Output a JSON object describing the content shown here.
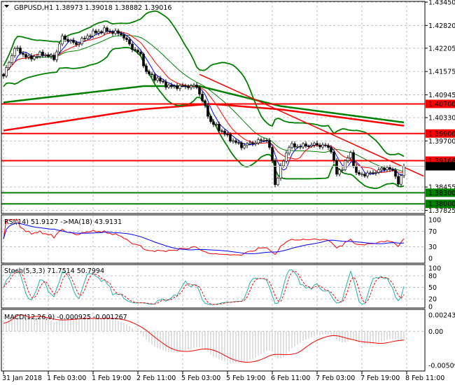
{
  "header": {
    "symbol": "GBPUSD,H1",
    "open": "1.38973",
    "high": "1.39018",
    "low": "1.38882",
    "close": "1.39016"
  },
  "chart_data": {
    "type": "candlestick",
    "price_axis": {
      "ticks": [
        "1.43450",
        "1.42820",
        "1.42205",
        "1.41575",
        "1.40945",
        "1.40330",
        "1.39700",
        "1.38455",
        "1.37825"
      ],
      "range": [
        1.37825,
        1.4345
      ]
    },
    "time_axis": {
      "ticks": [
        "31 Jan 2018",
        "1 Feb 03:00",
        "1 Feb 19:00",
        "2 Feb 11:00",
        "5 Feb 03:00",
        "5 Feb 19:00",
        "6 Feb 11:00",
        "7 Feb 03:00",
        "7 Feb 19:00",
        "8 Feb 11:00"
      ]
    },
    "close_path": [
      [
        0,
        1.4145
      ],
      [
        4,
        1.4221
      ],
      [
        9,
        1.4193
      ],
      [
        14,
        1.4206
      ],
      [
        18,
        1.4193
      ],
      [
        21,
        1.425
      ],
      [
        26,
        1.4231
      ],
      [
        31,
        1.4259
      ],
      [
        36,
        1.4269
      ],
      [
        42,
        1.4259
      ],
      [
        46,
        1.4221
      ],
      [
        49,
        1.4202
      ],
      [
        51,
        1.4155
      ],
      [
        55,
        1.4136
      ],
      [
        59,
        1.4117
      ],
      [
        64,
        1.4117
      ],
      [
        69,
        1.4117
      ],
      [
        71,
        1.4079
      ],
      [
        74,
        1.4022
      ],
      [
        77,
        1.4003
      ],
      [
        81,
        1.3975
      ],
      [
        85,
        1.3956
      ],
      [
        89,
        1.3965
      ],
      [
        94,
        1.3975
      ],
      [
        96,
        1.3918
      ],
      [
        97,
        1.3852
      ],
      [
        100,
        1.3918
      ],
      [
        102,
        1.3956
      ],
      [
        106,
        1.3956
      ],
      [
        111,
        1.396
      ],
      [
        115,
        1.3956
      ],
      [
        117,
        1.3946
      ],
      [
        119,
        1.388
      ],
      [
        121,
        1.3899
      ],
      [
        124,
        1.3937
      ],
      [
        126,
        1.388
      ],
      [
        130,
        1.388
      ],
      [
        134,
        1.389
      ],
      [
        137,
        1.3899
      ],
      [
        140,
        1.388
      ],
      [
        141,
        1.3852
      ],
      [
        143,
        1.39016
      ]
    ],
    "ma_green": [
      [
        0,
        1.4074
      ],
      [
        50,
        1.4118
      ],
      [
        70,
        1.4118
      ],
      [
        99,
        1.4064
      ],
      [
        143,
        1.402
      ]
    ],
    "ma_red": [
      [
        0,
        1.3998
      ],
      [
        49,
        1.4055
      ],
      [
        74,
        1.407
      ],
      [
        99,
        1.4055
      ],
      [
        143,
        1.4011
      ]
    ],
    "trendline": [
      [
        70,
        1.415
      ],
      [
        150,
        1.3875
      ]
    ],
    "levels": [
      {
        "price": "1.40700",
        "color": "#ff0000"
      },
      {
        "price": "1.39900",
        "color": "#ff0000"
      },
      {
        "price": "1.39168",
        "color": "#ff0000"
      },
      {
        "price": "1.38300",
        "color": "#008000"
      },
      {
        "price": "1.38000",
        "color": "#008000"
      }
    ],
    "current_price": "1.39016",
    "rsi": {
      "label": "RSI(14) 51.9127  ->MA(18) 43.9131",
      "ticks": [
        "100",
        "70",
        "30",
        "0"
      ]
    },
    "stoch": {
      "label": "Stoch(5,3,3) 71.7514 50.7994",
      "ticks": [
        "100",
        "80",
        "50",
        "20",
        "0"
      ]
    },
    "macd": {
      "label": "MACD(12,26,9) -0.000925 -0.001267",
      "ticks": [
        "0.002434",
        "0.00",
        "-0.005097"
      ],
      "range": [
        -0.005097,
        0.002434
      ]
    },
    "colors": {
      "bull": "#ffffff",
      "bear": "#000000",
      "bands": "#008000",
      "ma_fast": "#0000ff",
      "ma_slow": "#ff0000",
      "stoch_main": "#20b2aa",
      "stoch_signal": "#ff0000",
      "macd_hist": "#c0c0c0"
    }
  }
}
